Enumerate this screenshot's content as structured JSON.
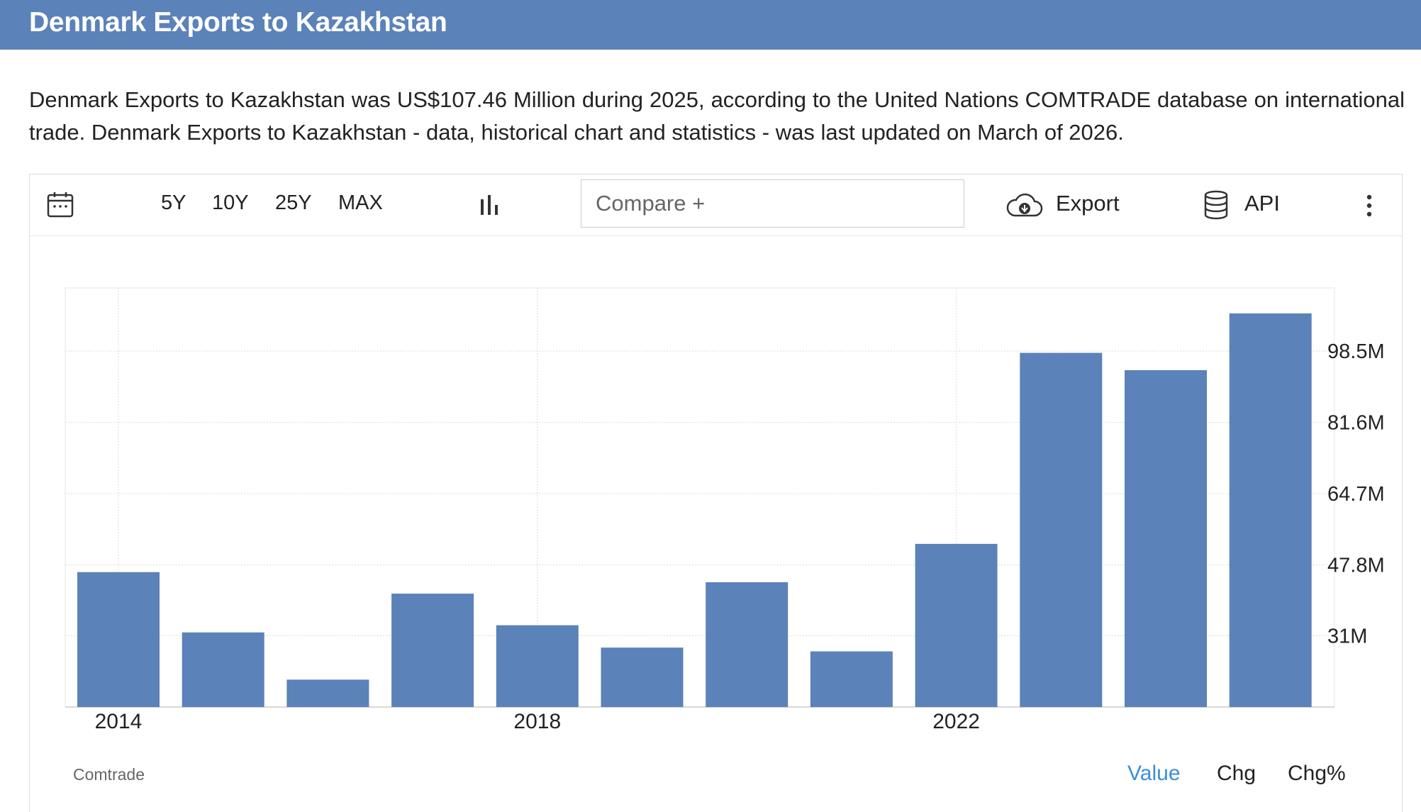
{
  "header": {
    "title": "Denmark Exports to Kazakhstan"
  },
  "description": "Denmark Exports to Kazakhstan was US$107.46 Million during 2025, according to the United Nations COMTRADE database on international trade. Denmark Exports to Kazakhstan - data, historical chart and statistics - was last updated on March of 2026.",
  "toolbar": {
    "calendar_icon": "calendar-icon",
    "ranges": [
      "5Y",
      "10Y",
      "25Y",
      "MAX"
    ],
    "chart_type_icon": "bar-chart-icon",
    "compare_placeholder": "Compare +",
    "export_label": "Export",
    "export_icon": "cloud-download-icon",
    "api_label": "API",
    "api_icon": "database-icon",
    "more_icon": "vertical-dots-icon"
  },
  "chart_data": {
    "type": "bar",
    "categories": [
      "2014",
      "2015",
      "2016",
      "2017",
      "2018",
      "2019",
      "2020",
      "2021",
      "2022",
      "2023",
      "2024",
      "2025"
    ],
    "x_tick_labels": [
      "2014",
      "2018",
      "2022"
    ],
    "values": [
      46.1,
      31.8,
      20.6,
      41.0,
      33.5,
      28.2,
      43.7,
      27.3,
      52.8,
      98.1,
      94.0,
      107.46
    ],
    "y_ticks": [
      31.0,
      47.8,
      64.7,
      81.6,
      98.5
    ],
    "y_tick_labels": [
      "31M",
      "47.8M",
      "64.7M",
      "81.6M",
      "98.5M"
    ],
    "ylim": [
      14.1,
      113.5
    ],
    "y_axis_position": "right",
    "grid": true,
    "bar_color": "#5b82b9",
    "title": "",
    "xlabel": "",
    "ylabel": ""
  },
  "footer": {
    "source": "Comtrade",
    "tabs": [
      "Value",
      "Chg",
      "Chg%"
    ],
    "active_tab_color": "#3b8ede"
  }
}
